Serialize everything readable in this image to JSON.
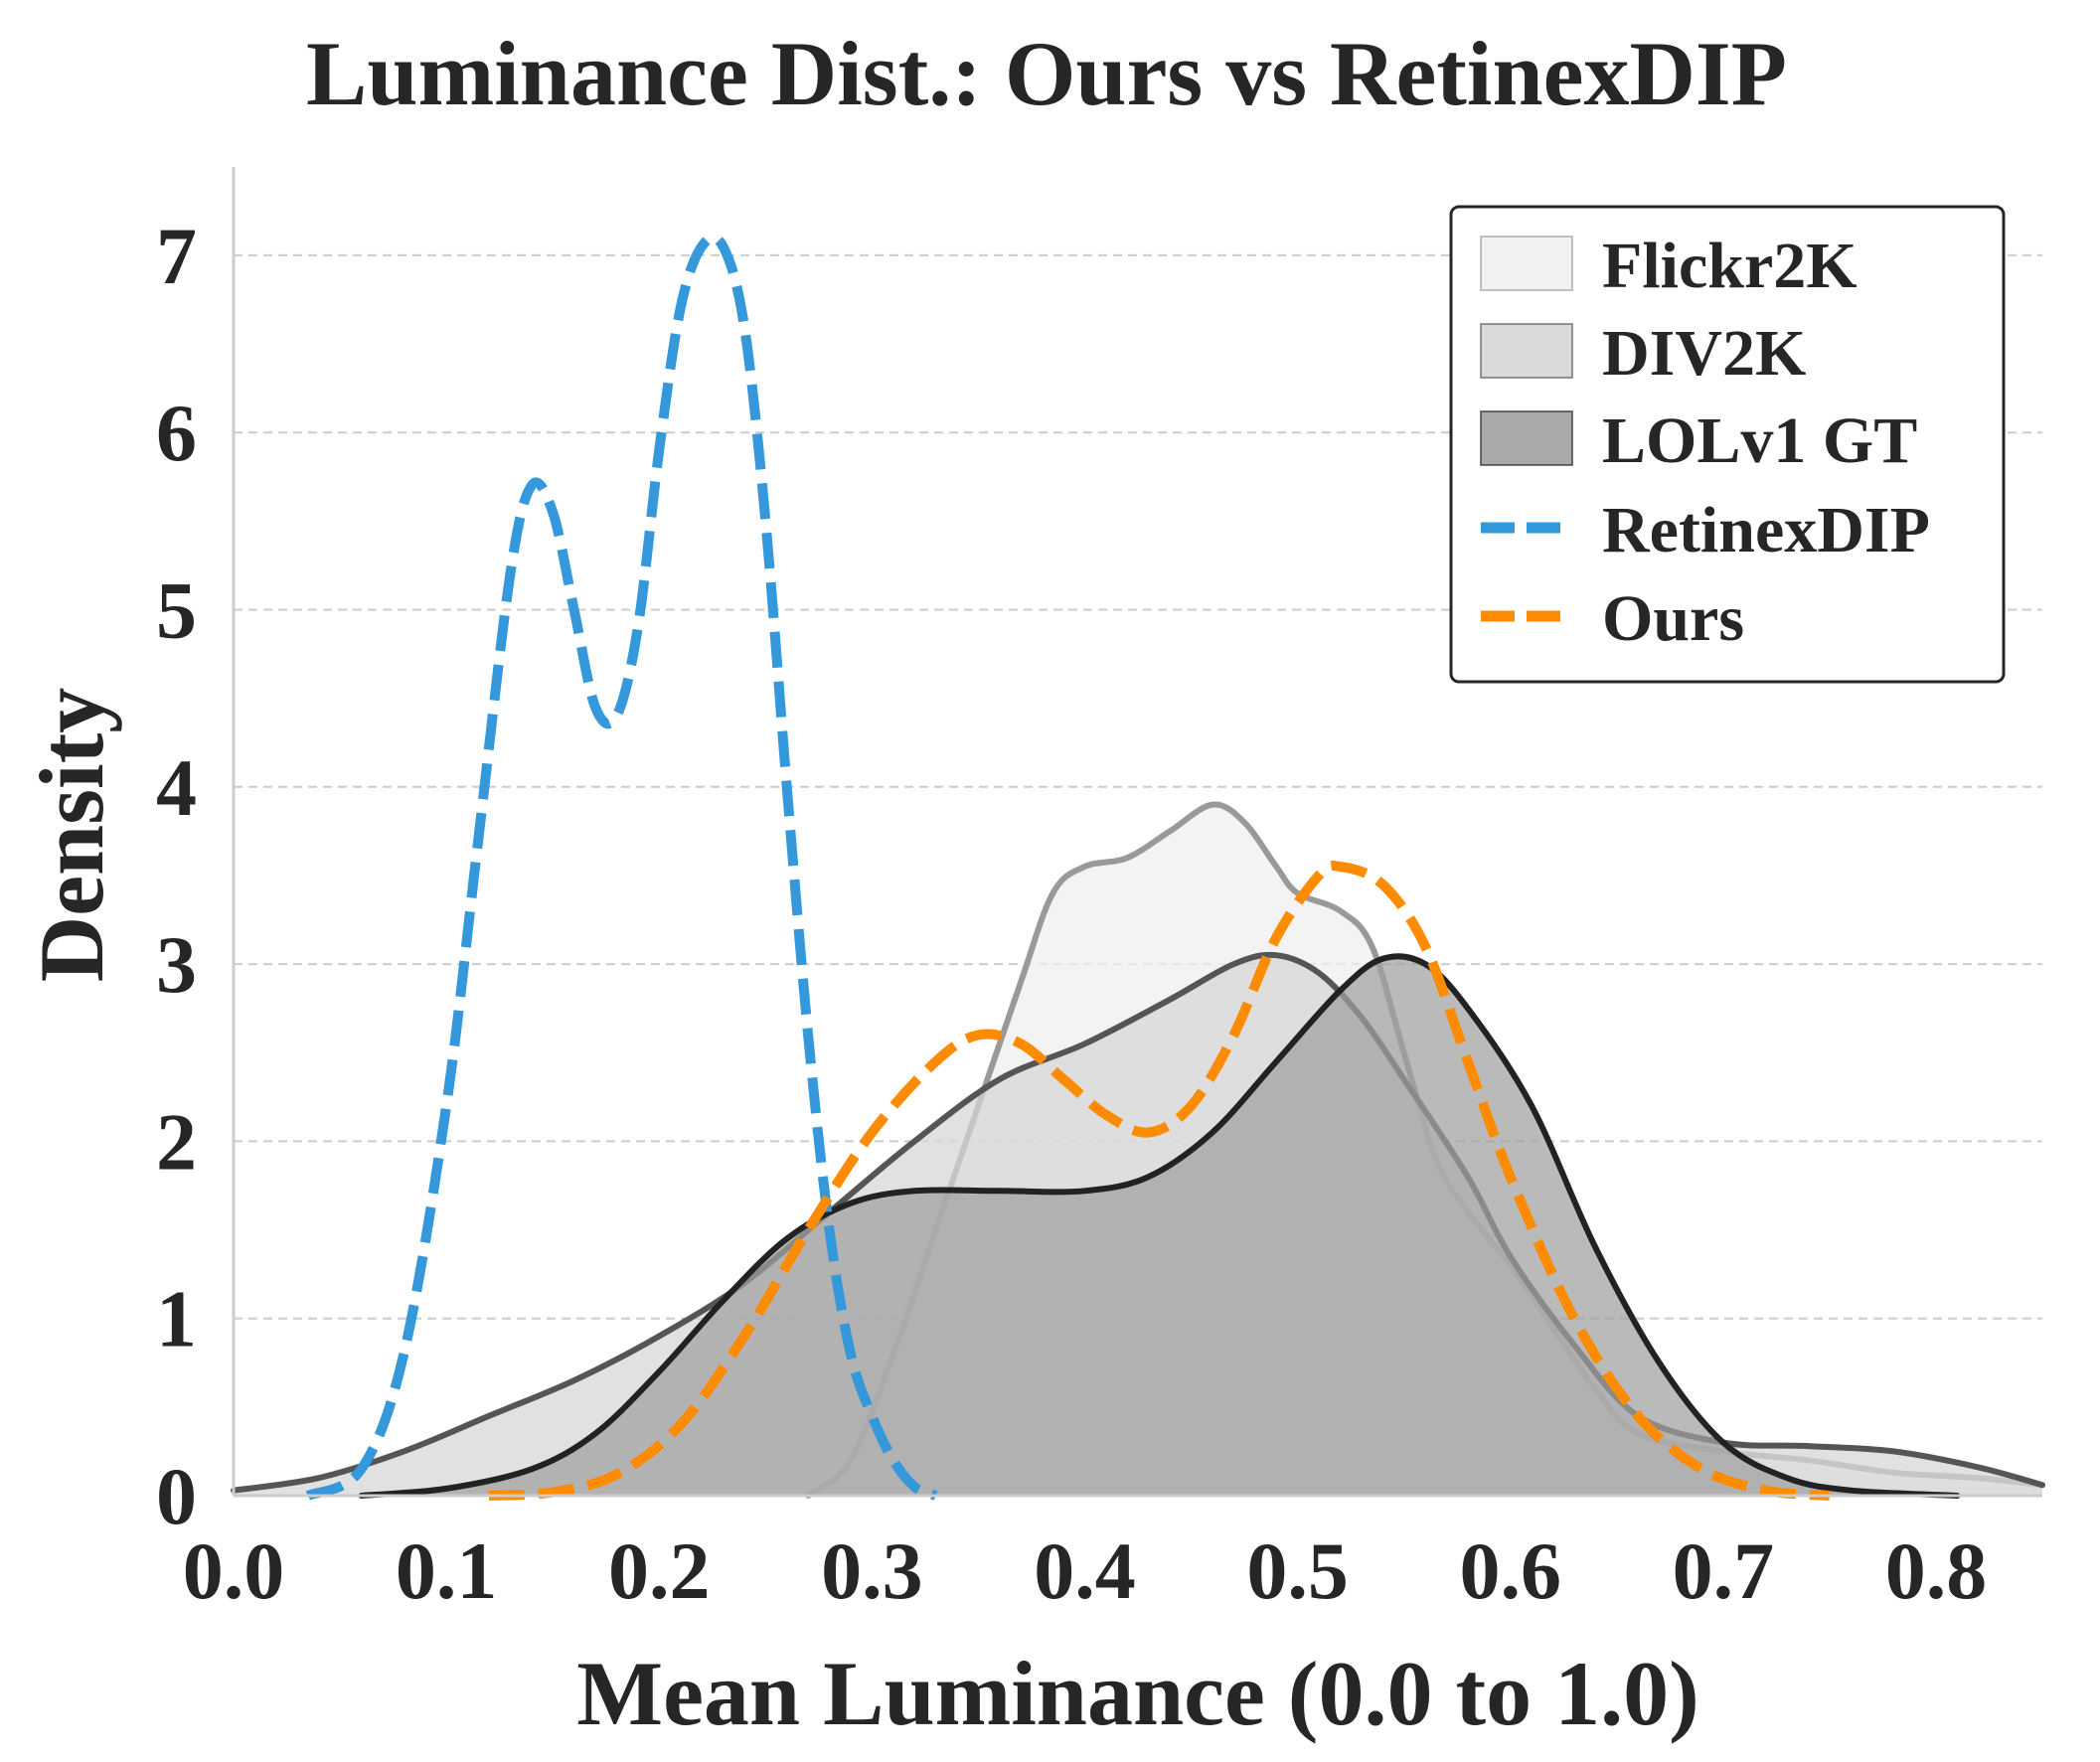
{
  "chart_data": {
    "type": "area",
    "title": "Luminance Dist.: Ours vs RetinexDIP",
    "xlabel": "Mean Luminance (0.0 to 1.0)",
    "ylabel": "Density",
    "xlim": [
      0.0,
      0.85
    ],
    "ylim": [
      0,
      7.5
    ],
    "xticks": [
      0.0,
      0.1,
      0.2,
      0.3,
      0.4,
      0.5,
      0.6,
      0.7,
      0.8
    ],
    "xtick_labels": [
      "0.0",
      "0.1",
      "0.2",
      "0.3",
      "0.4",
      "0.5",
      "0.6",
      "0.7",
      "0.8"
    ],
    "yticks": [
      0,
      1,
      2,
      3,
      4,
      5,
      6,
      7
    ],
    "ytick_labels": [
      "0",
      "1",
      "2",
      "3",
      "4",
      "5",
      "6",
      "7"
    ],
    "grid": "horizontal-dashed",
    "legend_position": "top-right",
    "series": [
      {
        "name": "Flickr2K",
        "style": "filled",
        "fill": "#efefef",
        "stroke": "#999999",
        "points": [
          [
            0.27,
            0.0
          ],
          [
            0.29,
            0.2
          ],
          [
            0.31,
            0.8
          ],
          [
            0.33,
            1.5
          ],
          [
            0.35,
            2.2
          ],
          [
            0.37,
            2.9
          ],
          [
            0.385,
            3.4
          ],
          [
            0.4,
            3.55
          ],
          [
            0.42,
            3.6
          ],
          [
            0.44,
            3.75
          ],
          [
            0.46,
            3.9
          ],
          [
            0.475,
            3.8
          ],
          [
            0.49,
            3.55
          ],
          [
            0.5,
            3.4
          ],
          [
            0.52,
            3.3
          ],
          [
            0.535,
            3.1
          ],
          [
            0.55,
            2.5
          ],
          [
            0.565,
            1.9
          ],
          [
            0.58,
            1.6
          ],
          [
            0.6,
            1.3
          ],
          [
            0.62,
            0.95
          ],
          [
            0.64,
            0.6
          ],
          [
            0.66,
            0.35
          ],
          [
            0.7,
            0.25
          ],
          [
            0.74,
            0.2
          ],
          [
            0.78,
            0.13
          ],
          [
            0.82,
            0.1
          ],
          [
            0.85,
            0.06
          ]
        ]
      },
      {
        "name": "DIV2K",
        "style": "filled",
        "fill": "#d5d5d5",
        "stroke": "#555555",
        "points": [
          [
            0.0,
            0.03
          ],
          [
            0.04,
            0.1
          ],
          [
            0.08,
            0.25
          ],
          [
            0.12,
            0.45
          ],
          [
            0.16,
            0.65
          ],
          [
            0.2,
            0.9
          ],
          [
            0.24,
            1.2
          ],
          [
            0.28,
            1.6
          ],
          [
            0.32,
            2.0
          ],
          [
            0.36,
            2.35
          ],
          [
            0.4,
            2.55
          ],
          [
            0.44,
            2.8
          ],
          [
            0.47,
            3.0
          ],
          [
            0.49,
            3.05
          ],
          [
            0.51,
            2.95
          ],
          [
            0.53,
            2.7
          ],
          [
            0.55,
            2.35
          ],
          [
            0.58,
            1.8
          ],
          [
            0.6,
            1.35
          ],
          [
            0.63,
            0.85
          ],
          [
            0.66,
            0.45
          ],
          [
            0.7,
            0.3
          ],
          [
            0.74,
            0.28
          ],
          [
            0.78,
            0.25
          ],
          [
            0.82,
            0.16
          ],
          [
            0.85,
            0.06
          ]
        ]
      },
      {
        "name": "LOLv1 GT",
        "style": "filled",
        "fill": "#a0a0a0",
        "stroke": "#222222",
        "points": [
          [
            0.06,
            0.0
          ],
          [
            0.1,
            0.04
          ],
          [
            0.14,
            0.15
          ],
          [
            0.17,
            0.35
          ],
          [
            0.2,
            0.7
          ],
          [
            0.23,
            1.1
          ],
          [
            0.26,
            1.45
          ],
          [
            0.29,
            1.65
          ],
          [
            0.32,
            1.72
          ],
          [
            0.36,
            1.72
          ],
          [
            0.4,
            1.72
          ],
          [
            0.43,
            1.8
          ],
          [
            0.46,
            2.05
          ],
          [
            0.49,
            2.45
          ],
          [
            0.52,
            2.85
          ],
          [
            0.54,
            3.03
          ],
          [
            0.56,
            3.0
          ],
          [
            0.58,
            2.75
          ],
          [
            0.61,
            2.2
          ],
          [
            0.64,
            1.4
          ],
          [
            0.67,
            0.75
          ],
          [
            0.7,
            0.3
          ],
          [
            0.73,
            0.1
          ],
          [
            0.76,
            0.03
          ],
          [
            0.81,
            0.0
          ]
        ]
      },
      {
        "name": "RetinexDIP",
        "style": "dashed",
        "stroke": "#3498db",
        "points": [
          [
            0.035,
            0.0
          ],
          [
            0.06,
            0.15
          ],
          [
            0.08,
            0.8
          ],
          [
            0.1,
            2.2
          ],
          [
            0.115,
            3.7
          ],
          [
            0.13,
            5.2
          ],
          [
            0.14,
            5.7
          ],
          [
            0.15,
            5.55
          ],
          [
            0.16,
            5.0
          ],
          [
            0.17,
            4.45
          ],
          [
            0.18,
            4.4
          ],
          [
            0.19,
            4.9
          ],
          [
            0.2,
            5.9
          ],
          [
            0.21,
            6.7
          ],
          [
            0.22,
            7.05
          ],
          [
            0.23,
            7.05
          ],
          [
            0.24,
            6.6
          ],
          [
            0.25,
            5.5
          ],
          [
            0.26,
            4.0
          ],
          [
            0.27,
            2.6
          ],
          [
            0.28,
            1.5
          ],
          [
            0.29,
            0.8
          ],
          [
            0.3,
            0.45
          ],
          [
            0.31,
            0.2
          ],
          [
            0.32,
            0.05
          ],
          [
            0.33,
            0.0
          ]
        ]
      },
      {
        "name": "Ours",
        "style": "dashed",
        "stroke": "#ff8c00",
        "points": [
          [
            0.12,
            0.0
          ],
          [
            0.15,
            0.02
          ],
          [
            0.18,
            0.12
          ],
          [
            0.21,
            0.4
          ],
          [
            0.24,
            0.9
          ],
          [
            0.27,
            1.5
          ],
          [
            0.3,
            2.05
          ],
          [
            0.33,
            2.45
          ],
          [
            0.35,
            2.6
          ],
          [
            0.37,
            2.55
          ],
          [
            0.39,
            2.35
          ],
          [
            0.41,
            2.15
          ],
          [
            0.43,
            2.05
          ],
          [
            0.45,
            2.2
          ],
          [
            0.47,
            2.6
          ],
          [
            0.49,
            3.15
          ],
          [
            0.51,
            3.5
          ],
          [
            0.52,
            3.55
          ],
          [
            0.54,
            3.45
          ],
          [
            0.56,
            3.1
          ],
          [
            0.58,
            2.45
          ],
          [
            0.6,
            1.8
          ],
          [
            0.63,
            1.0
          ],
          [
            0.66,
            0.45
          ],
          [
            0.69,
            0.15
          ],
          [
            0.72,
            0.03
          ],
          [
            0.75,
            0.0
          ]
        ]
      }
    ]
  }
}
